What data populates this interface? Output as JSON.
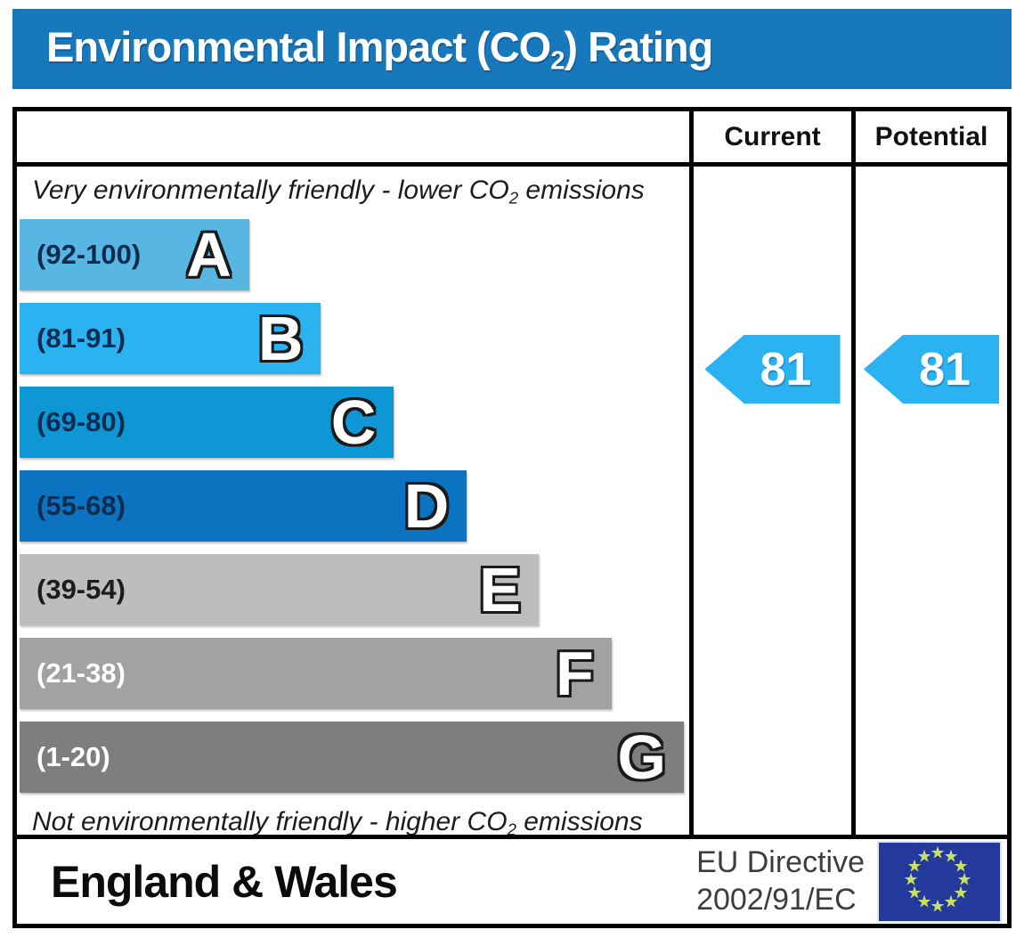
{
  "title": {
    "prefix": "Environmental Impact (CO",
    "sub": "2",
    "suffix": ") Rating"
  },
  "header": {
    "current": "Current",
    "potential": "Potential"
  },
  "captions": {
    "top": {
      "prefix": "Very environmentally friendly - lower CO",
      "sub": "2",
      "suffix": " emissions"
    },
    "bottom": {
      "prefix": "Not environmentally friendly - higher CO",
      "sub": "2",
      "suffix": " emissions"
    }
  },
  "chart_data": {
    "type": "bar",
    "title": "Environmental Impact (CO2) Rating",
    "bands": [
      {
        "letter": "A",
        "range": "(92-100)",
        "min": 92,
        "max": 100,
        "color": "#58b6e3",
        "label_color": "#0d2c50",
        "width_pct": 34.3
      },
      {
        "letter": "B",
        "range": "(81-91)",
        "min": 81,
        "max": 91,
        "color": "#2bb2f0",
        "label_color": "#0d2c50",
        "width_pct": 45.0
      },
      {
        "letter": "C",
        "range": "(69-80)",
        "min": 69,
        "max": 80,
        "color": "#0e97d4",
        "label_color": "#0d2c50",
        "width_pct": 55.9
      },
      {
        "letter": "D",
        "range": "(55-68)",
        "min": 55,
        "max": 68,
        "color": "#0b73c0",
        "label_color": "#0d2c50",
        "width_pct": 66.8
      },
      {
        "letter": "E",
        "range": "(39-54)",
        "min": 39,
        "max": 54,
        "color": "#bdbdbd",
        "label_color": "#1c1c1c",
        "width_pct": 77.5
      },
      {
        "letter": "F",
        "range": "(21-38)",
        "min": 21,
        "max": 38,
        "color": "#a2a2a2",
        "label_color": "#ffffff",
        "width_pct": 88.4
      },
      {
        "letter": "G",
        "range": "(1-20)",
        "min": 1,
        "max": 20,
        "color": "#7e7e7e",
        "label_color": "#ffffff",
        "width_pct": 99.2
      }
    ],
    "current": {
      "value": 81,
      "band": "B",
      "arrow_color": "#2bb2f0"
    },
    "potential": {
      "value": 81,
      "band": "B",
      "arrow_color": "#2bb2f0"
    }
  },
  "footer": {
    "region": "England & Wales",
    "directive_line1": "EU Directive",
    "directive_line2": "2002/91/EC",
    "flag": {
      "stars": 12,
      "blue": "#23399b",
      "star_color": "#c9e060"
    }
  },
  "colors": {
    "title_bar": "#1878bc",
    "border": "#000000"
  }
}
